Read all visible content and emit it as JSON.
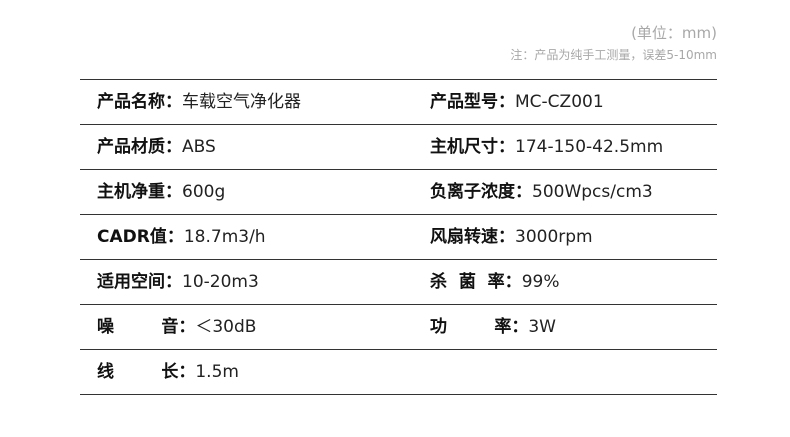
{
  "header": {
    "unit": "(单位：mm)",
    "note": "注：产品为纯手工测量，误差5-10mm"
  },
  "rows": [
    [
      {
        "label": "产品名称：",
        "value": "车载空气净化器"
      },
      {
        "label": "产品型号：",
        "value": "MC-CZ001"
      }
    ],
    [
      {
        "label": "产品材质：",
        "value": "ABS"
      },
      {
        "label": "主机尺寸：",
        "value": "174-150-42.5mm"
      }
    ],
    [
      {
        "label": "主机净重：",
        "value": "600g"
      },
      {
        "label": "负离子浓度：",
        "value": "500Wpcs/cm3"
      }
    ],
    [
      {
        "label": "CADR值：",
        "value": "18.7m3/h"
      },
      {
        "label": "风扇转速：",
        "value": "3000rpm"
      }
    ],
    [
      {
        "label": "适用空间：",
        "value": "10-20m3"
      },
      {
        "label": "杀  菌  率：",
        "value": "99%"
      }
    ],
    [
      {
        "label": "噪        音：",
        "value": "＜30dB"
      },
      {
        "label": "功        率：",
        "value": "3W"
      }
    ],
    [
      {
        "label": "线        长：",
        "value": "1.5m"
      }
    ]
  ]
}
